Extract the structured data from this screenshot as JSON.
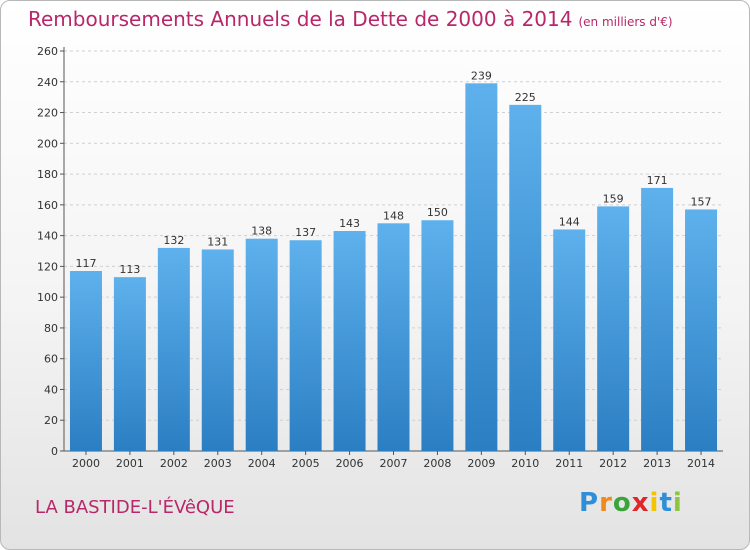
{
  "header": {
    "title": "Remboursements Annuels de la Dette de 2000 à 2014",
    "unit": "(en milliers d'€)"
  },
  "footer": {
    "commune": "LA BASTIDE-L'ÉVêQUE",
    "brand": [
      "P",
      "r",
      "o",
      "x",
      "i",
      "t",
      "i"
    ],
    "brand_colors": [
      "#2e8fd8",
      "#f08a1c",
      "#3aa43a",
      "#e0262a",
      "#f5c400",
      "#2e8fd8",
      "#8cc63f"
    ]
  },
  "colors": {
    "bar_light": "#5eb1ec",
    "bar_dark": "#2b7ec2",
    "grid": "#d0d0d0"
  },
  "chart_data": {
    "type": "bar",
    "title": "Remboursements Annuels de la Dette de 2000 à 2014",
    "ylabel": "en milliers d'€",
    "xlabel": "",
    "categories": [
      "2000",
      "2001",
      "2002",
      "2003",
      "2004",
      "2005",
      "2006",
      "2007",
      "2008",
      "2009",
      "2010",
      "2011",
      "2012",
      "2013",
      "2014"
    ],
    "values": [
      117,
      113,
      132,
      131,
      138,
      137,
      143,
      148,
      150,
      239,
      225,
      144,
      159,
      171,
      157
    ],
    "ylim": [
      0,
      260
    ],
    "yticks": [
      0,
      20,
      40,
      60,
      80,
      100,
      120,
      140,
      160,
      180,
      200,
      220,
      240,
      260
    ],
    "grid": true
  }
}
